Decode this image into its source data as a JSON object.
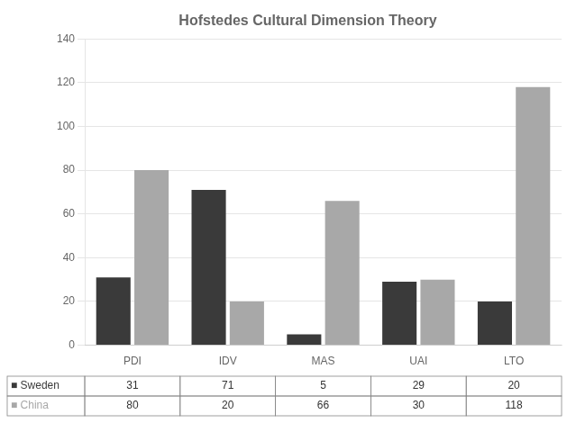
{
  "chart_data": {
    "type": "bar",
    "title": "Hofstedes Cultural Dimension Theory",
    "categories": [
      "PDI",
      "IDV",
      "MAS",
      "UAI",
      "LTO"
    ],
    "series": [
      {
        "color": "#3a3a3a",
        "values": [
          31,
          71,
          5,
          29,
          20
        ]
      },
      {
        "color": "#a8a8a8",
        "values": [
          80,
          20,
          66,
          30,
          118
        ]
      }
    ],
    "ylim": [
      0,
      140
    ],
    "yticks": [
      0,
      20,
      40,
      60,
      80,
      100,
      120,
      140
    ],
    "grid": true,
    "table": {
      "rows": [
        {
          "label": "■ Sweden",
          "values": [
            "31",
            "71",
            "5",
            "29",
            "20"
          ]
        },
        {
          "label": "■ China",
          "values": [
            "80",
            "20",
            "66",
            "30",
            "118"
          ]
        }
      ]
    }
  }
}
